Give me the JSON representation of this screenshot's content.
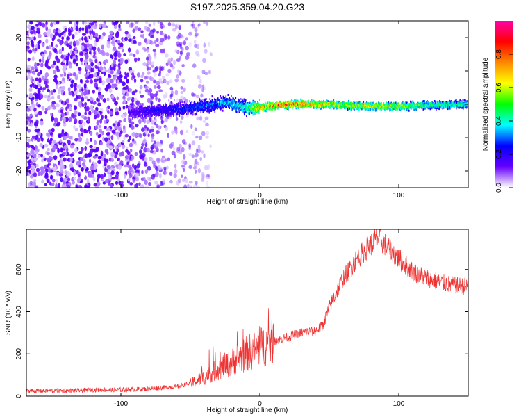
{
  "title": "S197.2025.359.04.20.G23",
  "chart_data": [
    {
      "type": "heatmap",
      "title": "S197.2025.359.04.20.G23",
      "xlabel": "Height of straight line (km)",
      "ylabel": "Frequency (Hz)",
      "xlim": [
        -168,
        150
      ],
      "ylim": [
        -25,
        25
      ],
      "x_ticks": [
        -100,
        0,
        100
      ],
      "y_ticks": [
        -20,
        -10,
        0,
        10,
        20
      ],
      "colorbar": {
        "label": "Normalized spectral amplitude",
        "range": [
          0,
          1
        ],
        "ticks": [
          "0.0",
          "0.2",
          "0.4",
          "0.6",
          "0.8"
        ],
        "stops": [
          "#ffffff",
          "#6600ff",
          "#0000ff",
          "#00ffff",
          "#00ff00",
          "#ffff00",
          "#ff8800",
          "#ff0000",
          "#ff00aa"
        ]
      },
      "noise_region_km": [
        -168,
        -45
      ],
      "signal_band": [
        {
          "x": -95,
          "y": -2.5,
          "amp": 0.15
        },
        {
          "x": -80,
          "y": -2.0,
          "amp": 0.2
        },
        {
          "x": -60,
          "y": -1.5,
          "amp": 0.25
        },
        {
          "x": -40,
          "y": -0.5,
          "amp": 0.3
        },
        {
          "x": -25,
          "y": 0.5,
          "amp": 0.35
        },
        {
          "x": -10,
          "y": -1.0,
          "amp": 0.45
        },
        {
          "x": 0,
          "y": -1.0,
          "amp": 0.75
        },
        {
          "x": 20,
          "y": 0.0,
          "amp": 0.8
        },
        {
          "x": 40,
          "y": 0.0,
          "amp": 0.75
        },
        {
          "x": 60,
          "y": -0.3,
          "amp": 0.6
        },
        {
          "x": 80,
          "y": -0.6,
          "amp": 0.65
        },
        {
          "x": 100,
          "y": -0.6,
          "amp": 0.6
        },
        {
          "x": 120,
          "y": -0.3,
          "amp": 0.5
        },
        {
          "x": 150,
          "y": 0.0,
          "amp": 0.45
        }
      ]
    },
    {
      "type": "line",
      "xlabel": "Height of straight line (km)",
      "ylabel": "SNR (10 * v/v)",
      "xlim": [
        -168,
        150
      ],
      "ylim": [
        0,
        790
      ],
      "x_ticks": [
        -100,
        0,
        100
      ],
      "y_ticks": [
        0,
        200,
        400,
        600
      ],
      "color": "#ee3333",
      "x": [
        -168,
        -140,
        -120,
        -100,
        -80,
        -60,
        -50,
        -40,
        -30,
        -20,
        -10,
        0,
        10,
        20,
        30,
        40,
        45,
        50,
        60,
        70,
        80,
        85,
        90,
        100,
        110,
        120,
        130,
        140,
        150
      ],
      "y": [
        25,
        25,
        30,
        30,
        35,
        45,
        60,
        90,
        130,
        160,
        200,
        230,
        260,
        280,
        300,
        310,
        330,
        420,
        560,
        650,
        720,
        750,
        720,
        650,
        590,
        560,
        540,
        525,
        520
      ]
    }
  ]
}
